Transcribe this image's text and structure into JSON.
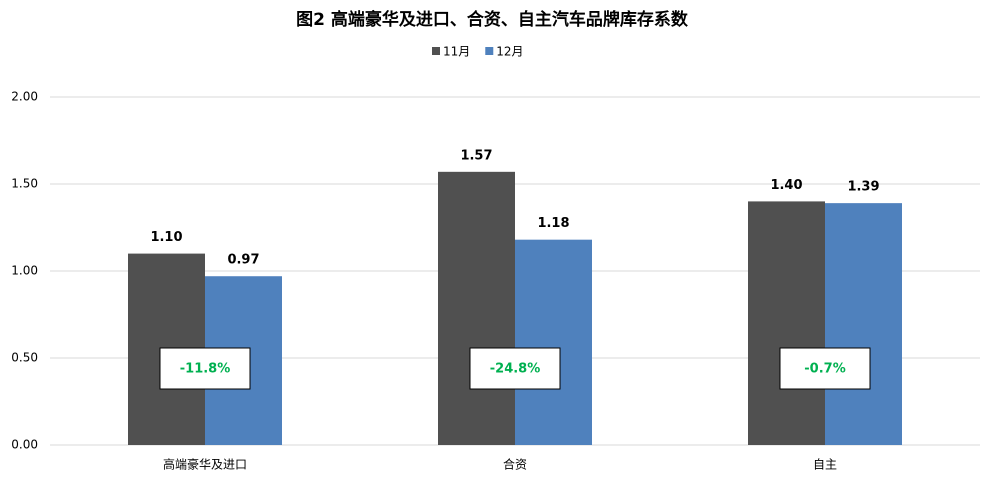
{
  "chart_data": {
    "type": "bar",
    "title": "图2  高端豪华及进口、合资、自主汽车品牌库存系数",
    "categories": [
      "高端豪华及进口",
      "合资",
      "自主"
    ],
    "series": [
      {
        "name": "11月",
        "color": "#505050",
        "values": [
          1.1,
          1.57,
          1.4
        ],
        "value_labels": [
          "1.10",
          "1.57",
          "1.40"
        ]
      },
      {
        "name": "12月",
        "color": "#4f81bd",
        "values": [
          0.97,
          1.18,
          1.39
        ],
        "value_labels": [
          "0.97",
          "1.18",
          "1.39"
        ]
      }
    ],
    "annotations": [
      "-11.8%",
      "-24.8%",
      "-0.7%"
    ],
    "annotation_color": "#00b050",
    "ylim": [
      0,
      2
    ],
    "yticks": [
      {
        "value": 0,
        "label": "0.00"
      },
      {
        "value": 0.5,
        "label": "0.50"
      },
      {
        "value": 1,
        "label": "1.00"
      },
      {
        "value": 1.5,
        "label": "1.50"
      },
      {
        "value": 2,
        "label": "2.00"
      }
    ],
    "grid": true,
    "legend": "top"
  }
}
